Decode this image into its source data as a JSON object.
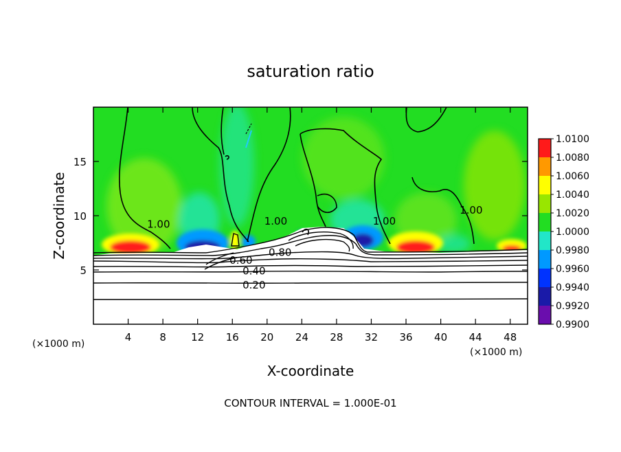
{
  "chart_data": {
    "type": "heatmap",
    "title": "saturation ratio",
    "xlabel": "X-coordinate",
    "ylabel": "Z-coordinate",
    "x_unit": "(×1000 m)",
    "x_unit_right": "(×1000 m)",
    "xlim": [
      0,
      50
    ],
    "ylim": [
      0,
      20
    ],
    "x_ticks": [
      4,
      8,
      12,
      16,
      20,
      24,
      28,
      32,
      36,
      40,
      44,
      48
    ],
    "y_ticks": [
      5,
      10,
      15
    ],
    "colorbar": {
      "levels": [
        "0.9900",
        "0.9920",
        "0.9940",
        "0.9960",
        "0.9980",
        "1.0000",
        "1.0020",
        "1.0040",
        "1.0060",
        "1.0080",
        "1.0100"
      ],
      "colors": [
        "#6a0dad",
        "#1a1aa8",
        "#0033ff",
        "#0099ff",
        "#22e6c8",
        "#22dd22",
        "#99e600",
        "#ffff00",
        "#ff9900",
        "#ff1a1a",
        "#ff8080"
      ]
    },
    "contour_labels": [
      {
        "text": "1.00",
        "x": 7.5,
        "y": 9.2
      },
      {
        "text": "1.00",
        "x": 21.0,
        "y": 9.5
      },
      {
        "text": "1.00",
        "x": 33.5,
        "y": 9.5
      },
      {
        "text": "1.00",
        "x": 43.5,
        "y": 10.5
      },
      {
        "text": "0.80",
        "x": 21.5,
        "y": 6.6
      },
      {
        "text": "0.60",
        "x": 17.0,
        "y": 5.9
      },
      {
        "text": "0.40",
        "x": 18.5,
        "y": 4.9
      },
      {
        "text": "0.20",
        "x": 18.5,
        "y": 3.6
      }
    ],
    "contour_interval_text": "CONTOUR INTERVAL =   1.000E-01"
  }
}
